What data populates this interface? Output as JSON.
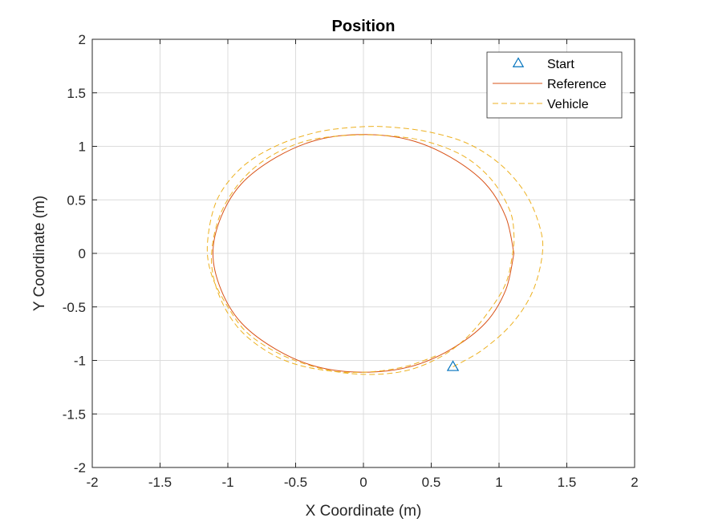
{
  "chart_data": {
    "type": "line",
    "title": "Position",
    "xlabel": "X Coordinate (m)",
    "ylabel": "Y Coordinate (m)",
    "xlim": [
      -2,
      2
    ],
    "ylim": [
      -2,
      2
    ],
    "xticks": [
      -2,
      -1.5,
      -1,
      -0.5,
      0,
      0.5,
      1,
      1.5,
      2
    ],
    "yticks": [
      -2,
      -1.5,
      -1,
      -0.5,
      0,
      0.5,
      1,
      1.5,
      2
    ],
    "xtick_labels": [
      "-2",
      "-1.5",
      "-1",
      "-0.5",
      "0",
      "0.5",
      "1",
      "1.5",
      "2"
    ],
    "ytick_labels": [
      "-2",
      "-1.5",
      "-1",
      "-0.5",
      "0",
      "0.5",
      "1",
      "1.5",
      "2"
    ],
    "grid": true,
    "legend_position": "top-right",
    "series": [
      {
        "name": "Start",
        "style": "marker-triangle",
        "color": "#0072BD",
        "x": [
          0.66
        ],
        "y": [
          -1.06
        ]
      },
      {
        "name": "Reference",
        "style": "solid",
        "color": "#D95319",
        "x": [
          1.11,
          1.05,
          0.9,
          0.64,
          0.34,
          0.0,
          -0.34,
          -0.64,
          -0.9,
          -1.05,
          -1.11,
          -1.05,
          -0.9,
          -0.64,
          -0.34,
          0.0,
          0.34,
          0.64,
          0.9,
          1.05,
          1.11
        ],
        "y": [
          0.0,
          0.34,
          0.65,
          0.9,
          1.06,
          1.11,
          1.06,
          0.9,
          0.65,
          0.34,
          0.0,
          -0.34,
          -0.65,
          -0.9,
          -1.06,
          -1.11,
          -1.06,
          -0.9,
          -0.65,
          -0.34,
          0.0
        ]
      },
      {
        "name": "Vehicle",
        "style": "dashed",
        "color": "#EDB120",
        "x": [
          0.66,
          0.88,
          1.1,
          1.25,
          1.32,
          1.3,
          1.2,
          1.02,
          0.78,
          0.5,
          0.2,
          -0.05,
          -0.35,
          -0.65,
          -0.9,
          -1.08,
          -1.15,
          -1.12,
          -1.0,
          -0.85,
          -0.6,
          -0.3,
          0.0,
          0.3,
          0.55,
          0.75,
          0.92,
          1.05,
          1.1,
          1.11,
          1.08,
          0.95,
          0.75,
          0.48,
          0.18,
          -0.15,
          -0.45,
          -0.72,
          -0.92,
          -1.06,
          -1.12,
          -1.09,
          -0.98,
          -0.82,
          -0.58,
          -0.3,
          0.0,
          0.3,
          0.55
        ],
        "y": [
          -1.06,
          -0.9,
          -0.65,
          -0.35,
          0.0,
          0.25,
          0.55,
          0.82,
          1.02,
          1.13,
          1.18,
          1.18,
          1.13,
          1.0,
          0.8,
          0.5,
          0.1,
          -0.2,
          -0.5,
          -0.75,
          -0.95,
          -1.08,
          -1.13,
          -1.1,
          -0.98,
          -0.8,
          -0.55,
          -0.28,
          0.0,
          0.18,
          0.4,
          0.68,
          0.9,
          1.04,
          1.1,
          1.1,
          1.04,
          0.88,
          0.65,
          0.35,
          0.0,
          -0.3,
          -0.6,
          -0.82,
          -1.0,
          -1.09,
          -1.11,
          -1.06,
          -0.95
        ]
      }
    ]
  }
}
